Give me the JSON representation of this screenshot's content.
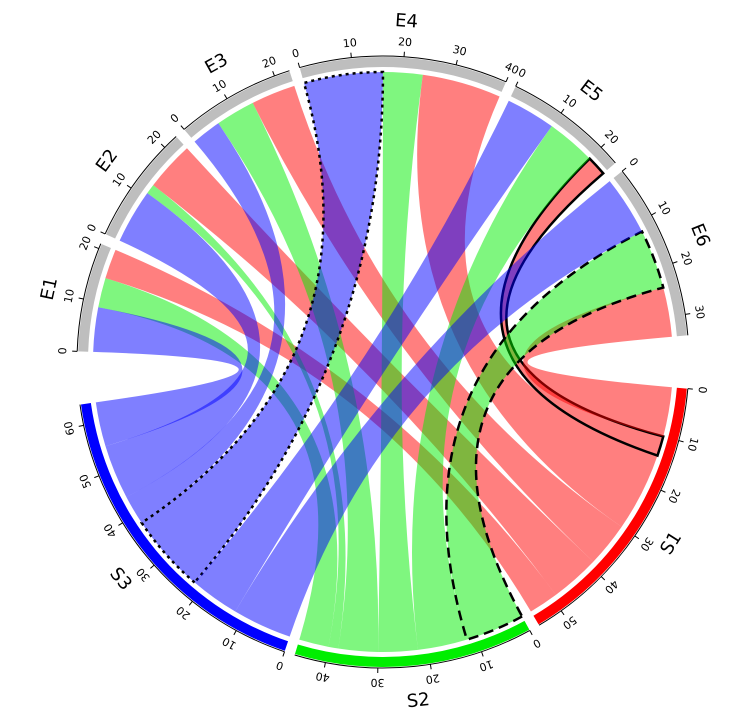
{
  "chart_data": {
    "type": "chord",
    "sectors": [
      {
        "name": "S1",
        "color": "#ff0000",
        "ticks": [
          0,
          10,
          20,
          30,
          40,
          50
        ]
      },
      {
        "name": "S2",
        "color": "#00ee00",
        "ticks": [
          0,
          10,
          20,
          30,
          40
        ]
      },
      {
        "name": "S3",
        "color": "#0000ff",
        "ticks": [
          0,
          10,
          20,
          30,
          40,
          50,
          60
        ]
      },
      {
        "name": "E1",
        "color": "#bebebe",
        "ticks": [
          0,
          10,
          20
        ]
      },
      {
        "name": "E2",
        "color": "#bebebe",
        "ticks": [
          0,
          10,
          20
        ]
      },
      {
        "name": "E3",
        "color": "#bebebe",
        "ticks": [
          0,
          10,
          20
        ]
      },
      {
        "name": "E4",
        "color": "#bebebe",
        "ticks": [
          0,
          10,
          20,
          30,
          40
        ]
      },
      {
        "name": "E5",
        "color": "#bebebe",
        "ticks": [
          0,
          10,
          20
        ]
      },
      {
        "name": "E6",
        "color": "#bebebe",
        "ticks": [
          0,
          10,
          20,
          30
        ]
      }
    ],
    "links": [
      {
        "source": "S1",
        "target": "E1",
        "value": 6
      },
      {
        "source": "S2",
        "target": "E1",
        "value": 6
      },
      {
        "source": "S3",
        "target": "E1",
        "value": 9
      },
      {
        "source": "S1",
        "target": "E2",
        "value": 10
      },
      {
        "source": "S2",
        "target": "E2",
        "value": 2
      },
      {
        "source": "S3",
        "target": "E2",
        "value": 11
      },
      {
        "source": "S1",
        "target": "E3",
        "value": 9
      },
      {
        "source": "S2",
        "target": "E3",
        "value": 8
      },
      {
        "source": "S3",
        "target": "E3",
        "value": 6
      },
      {
        "source": "S1",
        "target": "E4",
        "value": 16
      },
      {
        "source": "S2",
        "target": "E4",
        "value": 8
      },
      {
        "source": "S3",
        "target": "E4",
        "value": 16,
        "border": "dotted"
      },
      {
        "source": "S1",
        "target": "E5",
        "value": 4,
        "border": "solid"
      },
      {
        "source": "S2",
        "target": "E5",
        "value": 10
      },
      {
        "source": "S3",
        "target": "E5",
        "value": 10
      },
      {
        "source": "S1",
        "target": "E6",
        "value": 10
      },
      {
        "source": "S2",
        "target": "E6",
        "value": 12,
        "border": "dashed"
      },
      {
        "source": "S3",
        "target": "E6",
        "value": 12
      }
    ],
    "link_alpha": 0.5
  }
}
